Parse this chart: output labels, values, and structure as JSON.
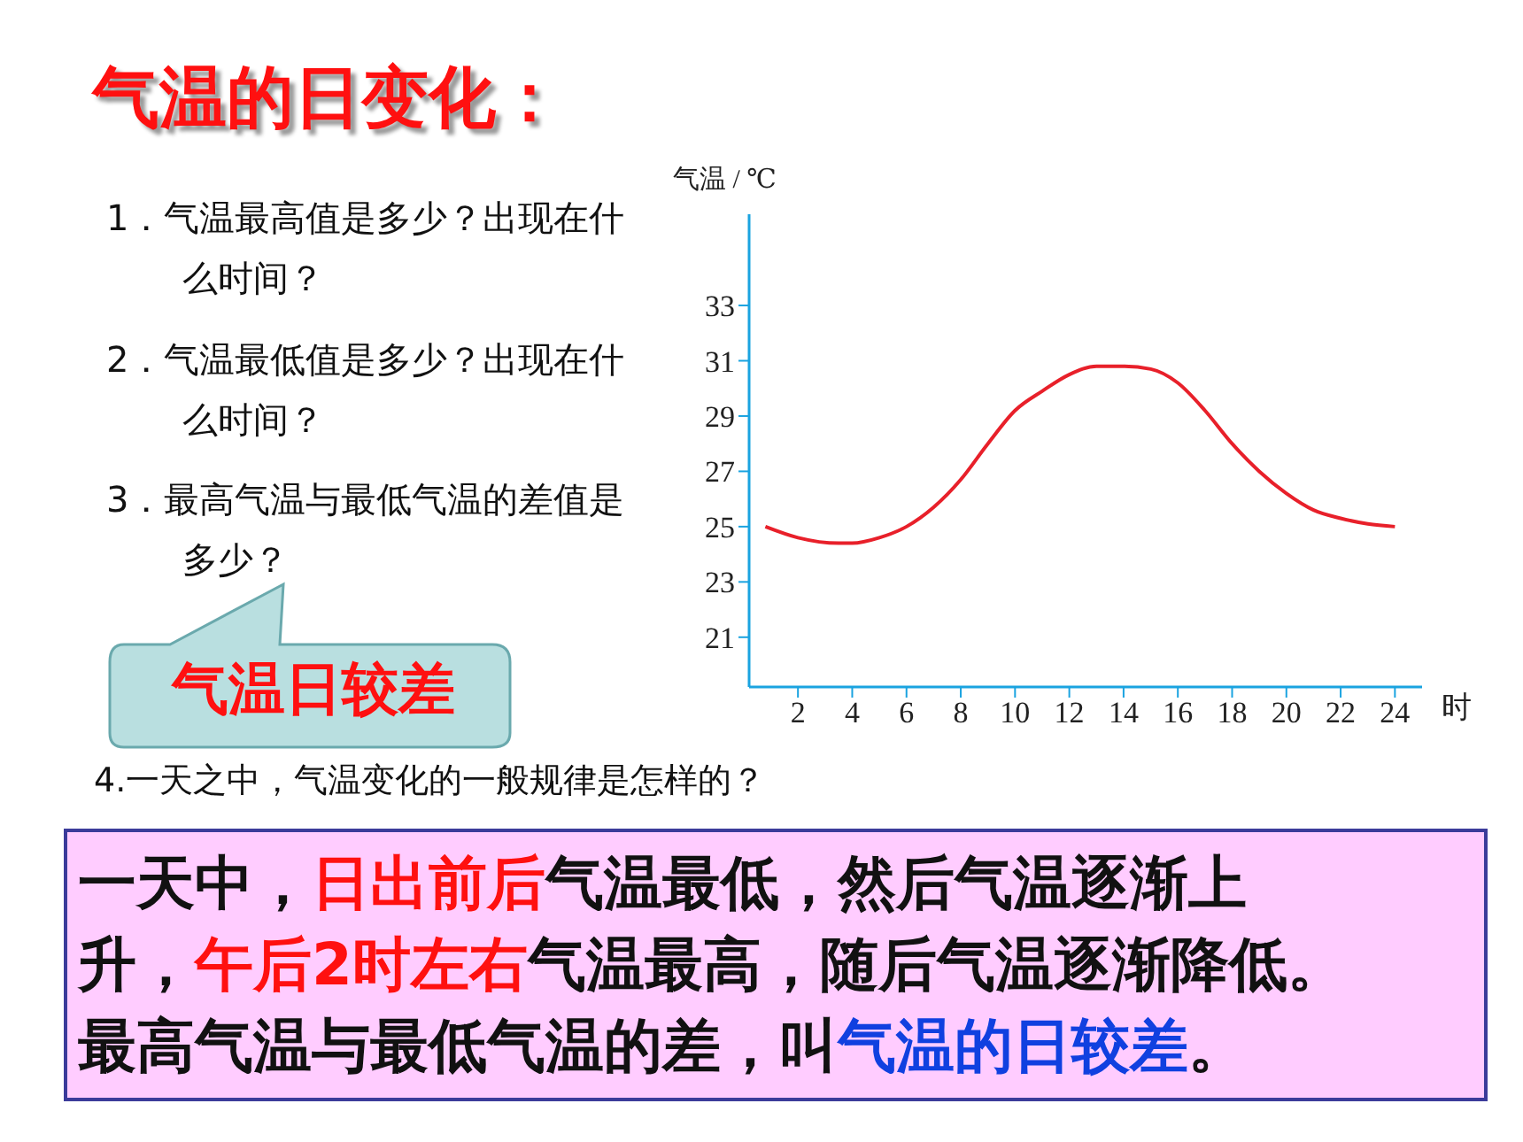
{
  "chart_data": {
    "type": "line",
    "title": "气温的日变化：",
    "xlabel": "时",
    "ylabel": "气温 / ℃",
    "x": [
      0.8,
      2,
      3.5,
      4,
      5,
      6,
      7,
      8,
      9,
      10,
      11,
      12,
      13,
      14,
      15,
      16,
      17,
      18,
      19,
      20,
      21,
      22,
      23,
      24
    ],
    "series": [
      {
        "color": "#e8202a",
        "values": [
          25.0,
          24.6,
          24.4,
          24.4,
          24.6,
          25.0,
          25.7,
          26.7,
          28.0,
          29.2,
          29.9,
          30.5,
          30.8,
          30.8,
          30.7,
          30.2,
          29.2,
          28.0,
          27.0,
          26.2,
          25.6,
          25.3,
          25.1,
          25.0
        ]
      }
    ],
    "xlim": [
      0.2,
      25
    ],
    "xticks": [
      2,
      4,
      6,
      8,
      10,
      12,
      14,
      16,
      18,
      20,
      22,
      24
    ],
    "ylim": [
      19.2,
      36.3
    ],
    "yticks": [
      21,
      23,
      25,
      27,
      29,
      31,
      33
    ],
    "grid": false,
    "legend": false,
    "marker": "none",
    "line_style": "solid",
    "annotations": [
      "1．气温最高值是多少？出现在什么时间？",
      "2．气温最低值是多少？出现在什么时间？",
      "3．最高气温与最低气温的差值是多少？",
      "气温日较差",
      "4.一天之中，气温变化的一般规律是怎样的？",
      "一天中，",
      "日出前后",
      "气温最低，然后气温逐渐上",
      "升，",
      "午后2时左右",
      "气温最高，随后气温逐渐降低。",
      "最高气温与最低气温的差，叫",
      "气温的日较差",
      "。"
    ]
  }
}
